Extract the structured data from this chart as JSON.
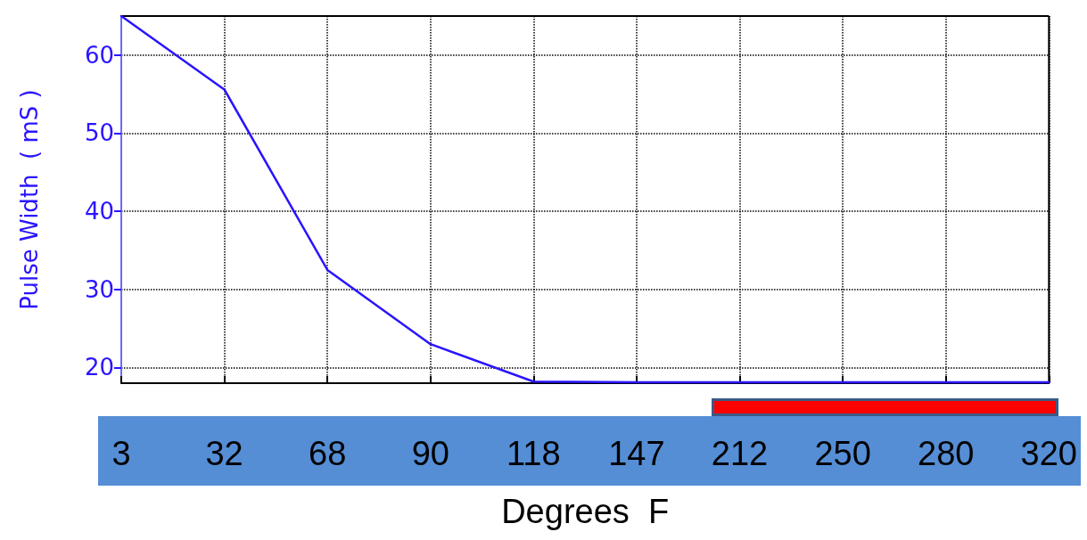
{
  "chart_data": {
    "type": "line",
    "xlabel": "Degrees  F",
    "ylabel": "Pulse Width  ( mS )",
    "categories": [
      "3",
      "32",
      "68",
      "90",
      "118",
      "147",
      "212",
      "250",
      "280",
      "320"
    ],
    "series": [
      {
        "color": "#2a14ff",
        "values": [
          65,
          55.6,
          32.5,
          23,
          18.2,
          18.1,
          18.1,
          18.1,
          18.1,
          18.1
        ]
      }
    ],
    "ylim": [
      18,
      65
    ],
    "yticks": [
      20,
      30,
      40,
      50,
      60
    ],
    "grid": true,
    "marker": "none",
    "line_style": "solid"
  }
}
